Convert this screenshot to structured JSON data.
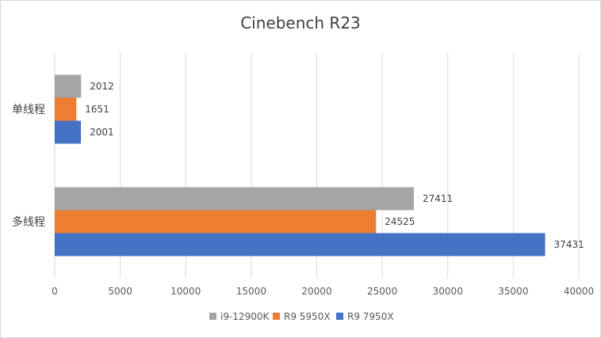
{
  "chart_data": {
    "type": "bar",
    "orientation": "horizontal",
    "title": "Cinebench R23",
    "categories": [
      "单线程",
      "多线程"
    ],
    "series": [
      {
        "name": "i9-12900K",
        "values": [
          2012,
          27411
        ],
        "color": "#a5a5a5"
      },
      {
        "name": "R9 5950X",
        "values": [
          1651,
          24525
        ],
        "color": "#ed7d31"
      },
      {
        "name": "R9 7950X",
        "values": [
          2001,
          37431
        ],
        "color": "#4472c4"
      }
    ],
    "xlim": [
      0,
      40000
    ],
    "xticks": [
      0,
      5000,
      10000,
      15000,
      20000,
      25000,
      30000,
      35000,
      40000
    ],
    "grid": true,
    "legend_position": "bottom"
  }
}
